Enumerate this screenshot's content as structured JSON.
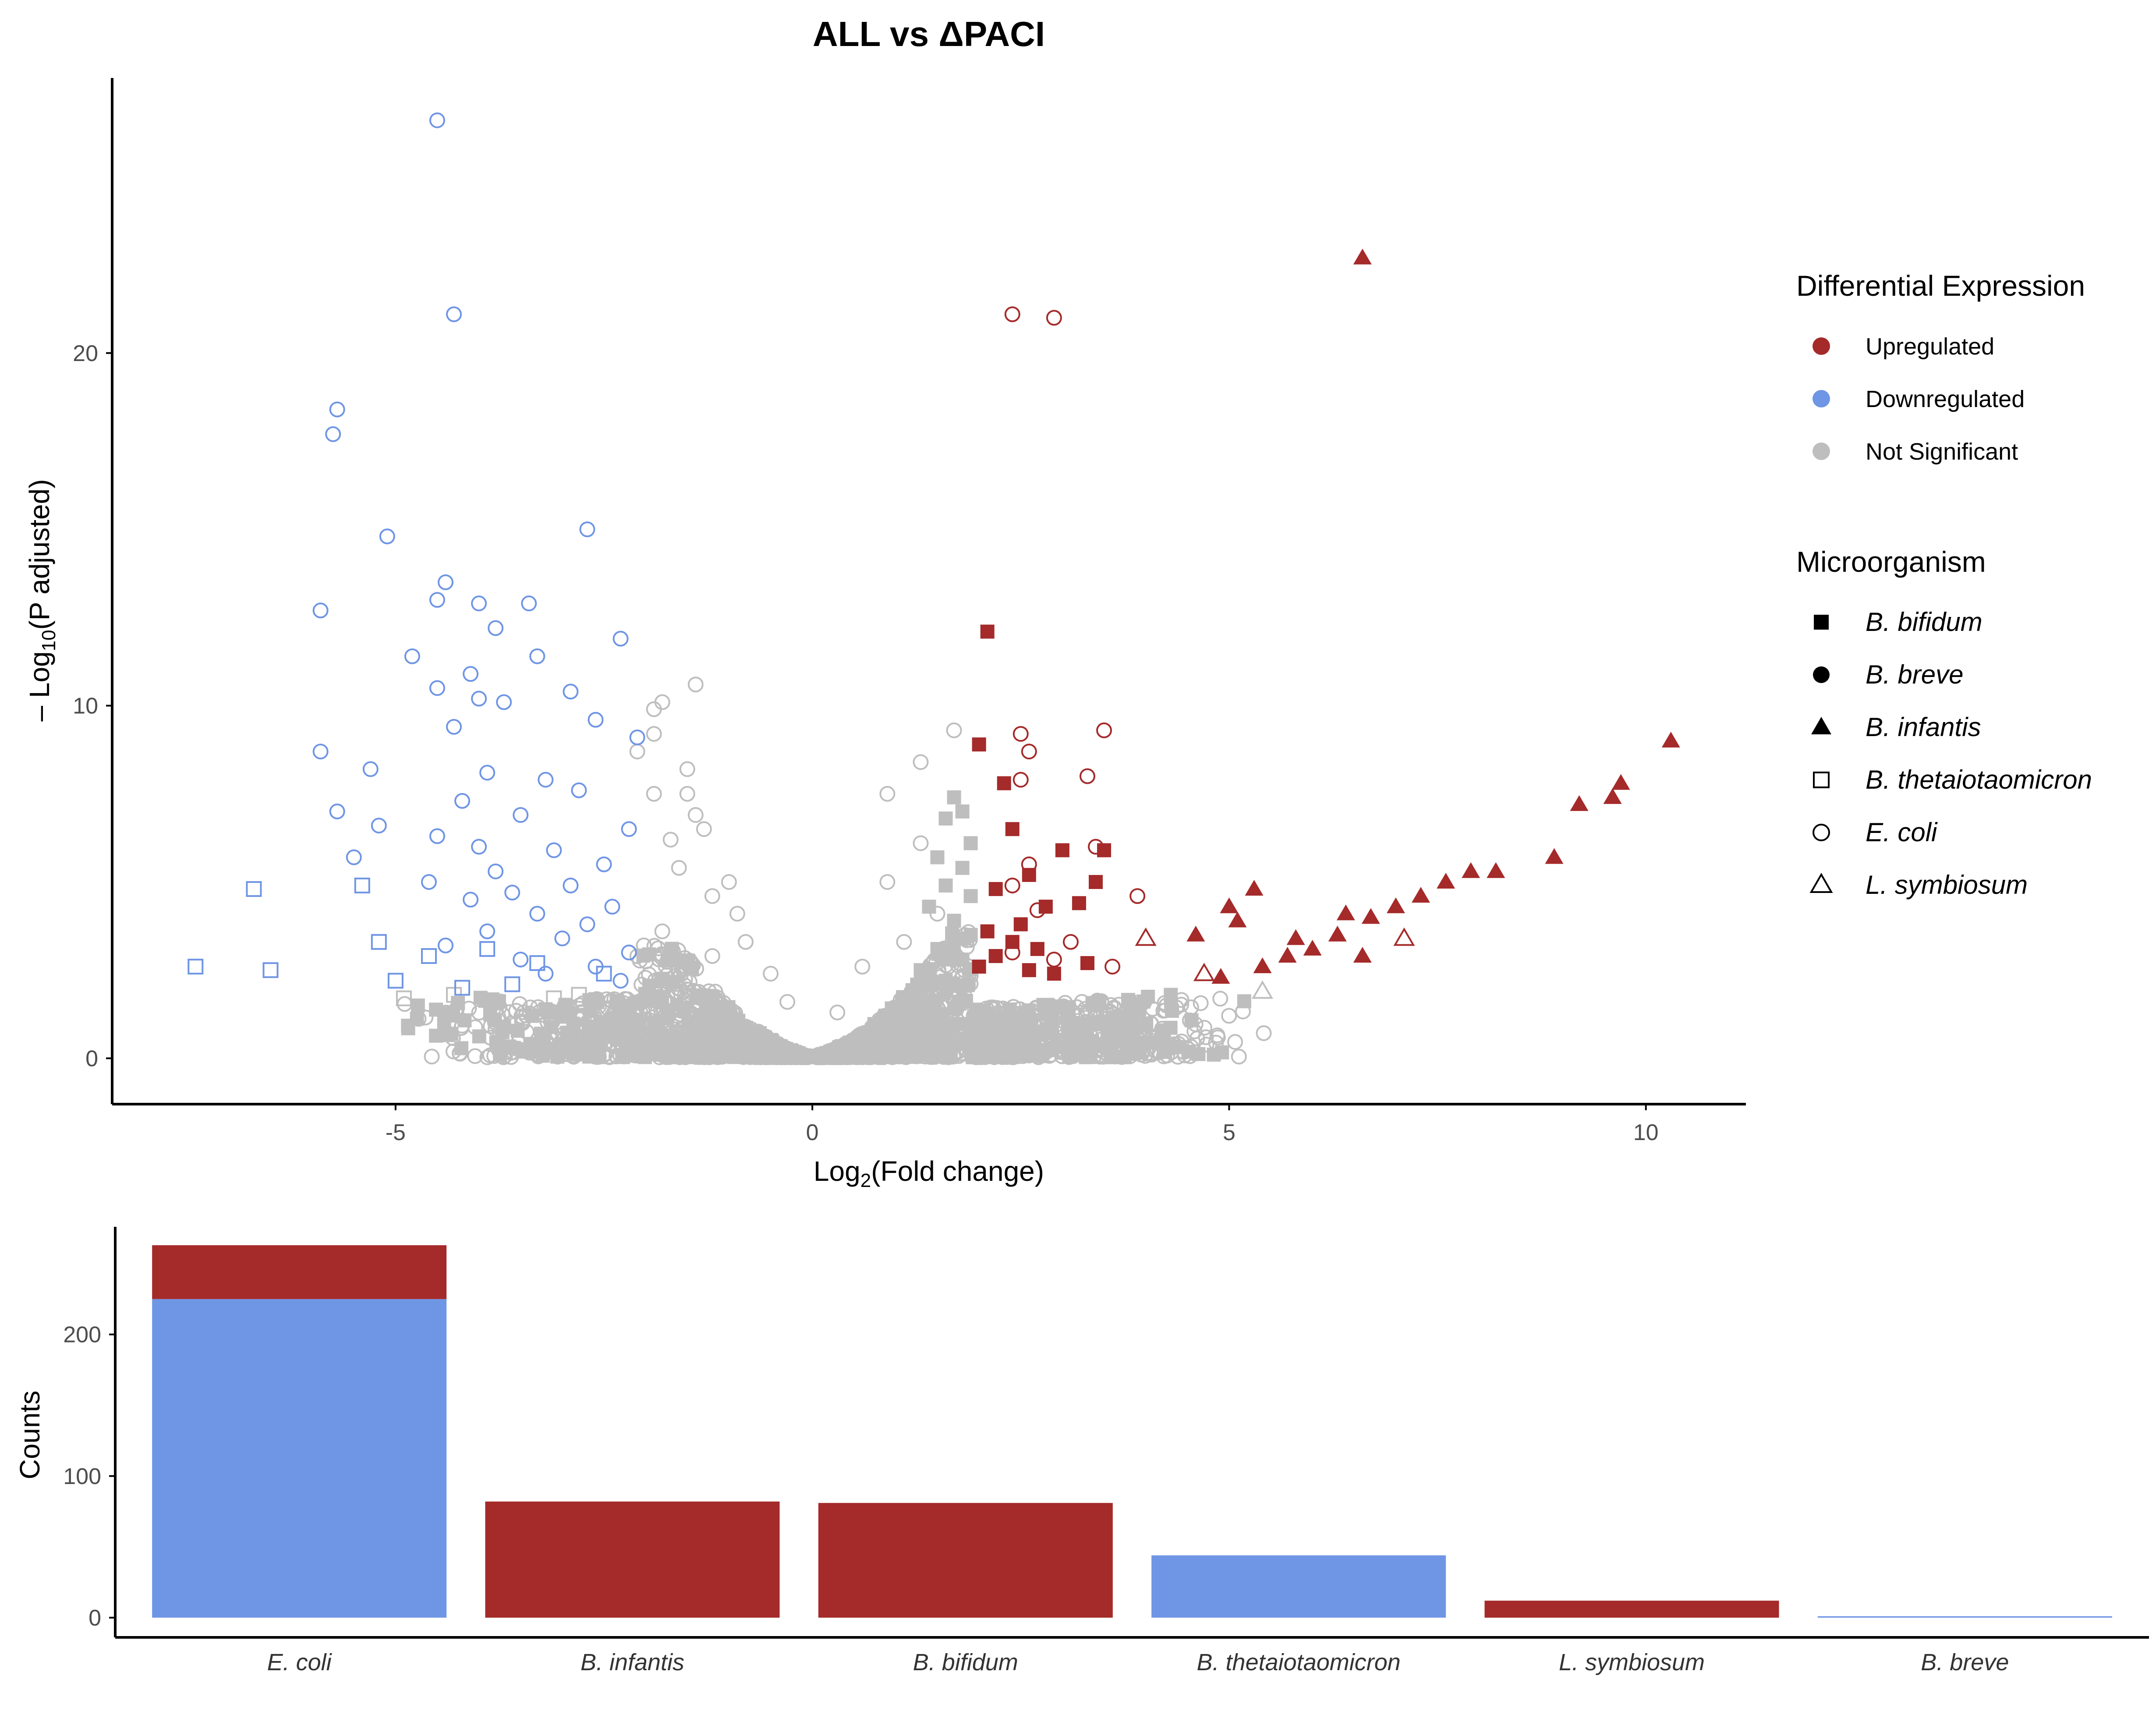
{
  "colors": {
    "up": "#A52A2A",
    "down": "#6F95E5",
    "ns": "#BEBEBE",
    "axis": "#000000"
  },
  "volcano": {
    "title": "ALL vs ΔPACI",
    "xlabel_main": "Log",
    "xlabel_sub": "2",
    "xlabel_rest": "(Fold change)",
    "ylabel_main": "– Log",
    "ylabel_sub": "10",
    "ylabel_rest": "(P adjusted)"
  },
  "legend": {
    "de_title": "Differential Expression",
    "de_items": [
      {
        "label": "Upregulated",
        "color": "#A52A2A"
      },
      {
        "label": "Downregulated",
        "color": "#6F95E5"
      },
      {
        "label": "Not Significant",
        "color": "#BEBEBE"
      }
    ],
    "org_title": "Microorganism",
    "org_items": [
      {
        "label": "B. bifidum",
        "shape": "square-filled"
      },
      {
        "label": "B. breve",
        "shape": "circle-filled"
      },
      {
        "label": "B. infantis",
        "shape": "triangle-filled"
      },
      {
        "label": "B. thetaiotaomicron",
        "shape": "square-open"
      },
      {
        "label": "E. coli",
        "shape": "circle-open"
      },
      {
        "label": "L. symbiosum",
        "shape": "triangle-open"
      }
    ]
  },
  "bars": {
    "ylabel": "Counts"
  },
  "chart_data": [
    {
      "type": "scatter",
      "title": "ALL vs ΔPACI",
      "xlabel": "Log2(Fold change)",
      "ylabel": "– Log10(P adjusted)",
      "xlim": [
        -8.4,
        11.2
      ],
      "ylim": [
        -1.3,
        27.8
      ],
      "xticks": [
        -5,
        0,
        5,
        10
      ],
      "yticks": [
        0,
        10,
        20
      ],
      "grid": false,
      "legend_position": "right",
      "shape_key": {
        "sqf": "B. bifidum",
        "cf": "B. breve",
        "tf": "B. infantis",
        "sqo": "B. thetaiotaomicron",
        "co": "E. coli",
        "to": "L. symbiosum"
      },
      "series": [
        {
          "name": "Downregulated",
          "color": "#6F95E5",
          "points": [
            [
              -4.5,
              26.6,
              "co"
            ],
            [
              -4.3,
              21.1,
              "co"
            ],
            [
              -5.7,
              18.4,
              "co"
            ],
            [
              -5.75,
              17.7,
              "co"
            ],
            [
              -2.7,
              15.0,
              "co"
            ],
            [
              -5.1,
              14.8,
              "co"
            ],
            [
              -4.4,
              13.5,
              "co"
            ],
            [
              -4.5,
              13.0,
              "co"
            ],
            [
              -4.0,
              12.9,
              "co"
            ],
            [
              -3.4,
              12.9,
              "co"
            ],
            [
              -5.9,
              12.7,
              "co"
            ],
            [
              -3.8,
              12.2,
              "co"
            ],
            [
              -2.3,
              11.9,
              "co"
            ],
            [
              -4.8,
              11.4,
              "co"
            ],
            [
              -3.3,
              11.4,
              "co"
            ],
            [
              -4.1,
              10.9,
              "co"
            ],
            [
              -4.5,
              10.5,
              "co"
            ],
            [
              -2.9,
              10.4,
              "co"
            ],
            [
              -4.0,
              10.2,
              "co"
            ],
            [
              -3.7,
              10.1,
              "co"
            ],
            [
              -2.6,
              9.6,
              "co"
            ],
            [
              -4.3,
              9.4,
              "co"
            ],
            [
              -2.1,
              9.1,
              "co"
            ],
            [
              -5.9,
              8.7,
              "co"
            ],
            [
              -5.3,
              8.2,
              "co"
            ],
            [
              -3.9,
              8.1,
              "co"
            ],
            [
              -3.2,
              7.9,
              "co"
            ],
            [
              -2.8,
              7.6,
              "co"
            ],
            [
              -4.2,
              7.3,
              "co"
            ],
            [
              -5.7,
              7.0,
              "co"
            ],
            [
              -3.5,
              6.9,
              "co"
            ],
            [
              -5.2,
              6.6,
              "co"
            ],
            [
              -2.2,
              6.5,
              "co"
            ],
            [
              -4.5,
              6.3,
              "co"
            ],
            [
              -4.0,
              6.0,
              "co"
            ],
            [
              -3.1,
              5.9,
              "co"
            ],
            [
              -5.5,
              5.7,
              "co"
            ],
            [
              -2.5,
              5.5,
              "co"
            ],
            [
              -3.8,
              5.3,
              "co"
            ],
            [
              -4.6,
              5.0,
              "co"
            ],
            [
              -2.9,
              4.9,
              "co"
            ],
            [
              -3.6,
              4.7,
              "co"
            ],
            [
              -4.1,
              4.5,
              "co"
            ],
            [
              -2.4,
              4.3,
              "co"
            ],
            [
              -3.3,
              4.1,
              "co"
            ],
            [
              -2.7,
              3.8,
              "co"
            ],
            [
              -3.9,
              3.6,
              "co"
            ],
            [
              -3.0,
              3.4,
              "co"
            ],
            [
              -4.4,
              3.2,
              "co"
            ],
            [
              -2.2,
              3.0,
              "co"
            ],
            [
              -3.5,
              2.8,
              "co"
            ],
            [
              -2.6,
              2.6,
              "co"
            ],
            [
              -3.2,
              2.4,
              "co"
            ],
            [
              -2.3,
              2.2,
              "co"
            ],
            [
              -6.7,
              4.8,
              "sqo"
            ],
            [
              -5.4,
              4.9,
              "sqo"
            ],
            [
              -7.4,
              2.6,
              "sqo"
            ],
            [
              -6.5,
              2.5,
              "sqo"
            ],
            [
              -5.2,
              3.3,
              "sqo"
            ],
            [
              -4.6,
              2.9,
              "sqo"
            ],
            [
              -3.9,
              3.1,
              "sqo"
            ],
            [
              -3.3,
              2.7,
              "sqo"
            ],
            [
              -5.0,
              2.2,
              "sqo"
            ],
            [
              -4.2,
              2.0,
              "sqo"
            ],
            [
              -3.6,
              2.1,
              "sqo"
            ],
            [
              -2.5,
              2.4,
              "sqo"
            ]
          ]
        },
        {
          "name": "Upregulated",
          "color": "#A52A2A",
          "points": [
            [
              6.6,
              22.7,
              "tf"
            ],
            [
              10.3,
              9.0,
              "tf"
            ],
            [
              9.7,
              7.8,
              "tf"
            ],
            [
              9.6,
              7.4,
              "tf"
            ],
            [
              9.2,
              7.2,
              "tf"
            ],
            [
              8.9,
              5.7,
              "tf"
            ],
            [
              8.2,
              5.3,
              "tf"
            ],
            [
              7.9,
              5.3,
              "tf"
            ],
            [
              7.6,
              5.0,
              "tf"
            ],
            [
              7.3,
              4.6,
              "tf"
            ],
            [
              7.0,
              4.3,
              "tf"
            ],
            [
              6.7,
              4.0,
              "tf"
            ],
            [
              6.3,
              3.5,
              "tf"
            ],
            [
              6.0,
              3.1,
              "tf"
            ],
            [
              5.7,
              2.9,
              "tf"
            ],
            [
              5.4,
              2.6,
              "tf"
            ],
            [
              5.3,
              4.8,
              "tf"
            ],
            [
              5.0,
              4.3,
              "tf"
            ],
            [
              4.6,
              3.5,
              "tf"
            ],
            [
              4.9,
              2.3,
              "tf"
            ],
            [
              6.6,
              2.9,
              "tf"
            ],
            [
              5.1,
              3.9,
              "tf"
            ],
            [
              6.4,
              4.1,
              "tf"
            ],
            [
              5.8,
              3.4,
              "tf"
            ],
            [
              2.1,
              12.1,
              "sqf"
            ],
            [
              2.0,
              8.9,
              "sqf"
            ],
            [
              2.3,
              7.8,
              "sqf"
            ],
            [
              2.4,
              6.5,
              "sqf"
            ],
            [
              3.0,
              5.9,
              "sqf"
            ],
            [
              3.5,
              5.9,
              "sqf"
            ],
            [
              2.6,
              5.2,
              "sqf"
            ],
            [
              3.4,
              5.0,
              "sqf"
            ],
            [
              2.2,
              4.8,
              "sqf"
            ],
            [
              2.8,
              4.3,
              "sqf"
            ],
            [
              3.2,
              4.4,
              "sqf"
            ],
            [
              2.5,
              3.8,
              "sqf"
            ],
            [
              2.1,
              3.6,
              "sqf"
            ],
            [
              2.4,
              3.3,
              "sqf"
            ],
            [
              2.7,
              3.1,
              "sqf"
            ],
            [
              2.2,
              2.9,
              "sqf"
            ],
            [
              3.3,
              2.7,
              "sqf"
            ],
            [
              2.6,
              2.5,
              "sqf"
            ],
            [
              2.0,
              2.6,
              "sqf"
            ],
            [
              2.9,
              2.4,
              "sqf"
            ],
            [
              2.4,
              21.1,
              "co"
            ],
            [
              2.9,
              21.0,
              "co"
            ],
            [
              3.5,
              9.3,
              "co"
            ],
            [
              2.5,
              9.2,
              "co"
            ],
            [
              2.6,
              8.7,
              "co"
            ],
            [
              2.5,
              7.9,
              "co"
            ],
            [
              3.3,
              8.0,
              "co"
            ],
            [
              3.4,
              6.0,
              "co"
            ],
            [
              2.6,
              5.5,
              "co"
            ],
            [
              2.4,
              4.9,
              "co"
            ],
            [
              3.9,
              4.6,
              "co"
            ],
            [
              2.7,
              4.2,
              "co"
            ],
            [
              3.1,
              3.3,
              "co"
            ],
            [
              2.4,
              3.0,
              "co"
            ],
            [
              2.9,
              2.8,
              "co"
            ],
            [
              3.6,
              2.6,
              "co"
            ],
            [
              4.0,
              3.4,
              "to"
            ],
            [
              7.1,
              3.4,
              "to"
            ],
            [
              4.7,
              2.4,
              "to"
            ]
          ]
        },
        {
          "name": "Not Significant",
          "color": "#BEBEBE",
          "points": [
            [
              -1.4,
              10.6,
              "co"
            ],
            [
              -1.8,
              10.1,
              "co"
            ],
            [
              -1.9,
              9.9,
              "co"
            ],
            [
              -1.9,
              9.2,
              "co"
            ],
            [
              -2.1,
              8.7,
              "co"
            ],
            [
              -1.5,
              8.2,
              "co"
            ],
            [
              -1.5,
              7.5,
              "co"
            ],
            [
              -1.9,
              7.5,
              "co"
            ],
            [
              -1.4,
              6.9,
              "co"
            ],
            [
              -1.3,
              6.5,
              "co"
            ],
            [
              -1.7,
              6.2,
              "co"
            ],
            [
              -1.0,
              5.0,
              "co"
            ],
            [
              -1.6,
              5.4,
              "co"
            ],
            [
              -0.9,
              4.1,
              "co"
            ],
            [
              -1.2,
              4.6,
              "co"
            ],
            [
              1.7,
              9.3,
              "co"
            ],
            [
              1.3,
              8.4,
              "co"
            ],
            [
              0.9,
              7.5,
              "co"
            ],
            [
              0.9,
              5.0,
              "co"
            ],
            [
              1.3,
              6.1,
              "co"
            ],
            [
              -0.8,
              3.3,
              "co"
            ],
            [
              -0.5,
              2.4,
              "co"
            ],
            [
              -0.3,
              1.6,
              "co"
            ],
            [
              0.3,
              1.3,
              "co"
            ],
            [
              0.6,
              2.6,
              "co"
            ],
            [
              1.1,
              3.3,
              "co"
            ],
            [
              1.5,
              4.1,
              "co"
            ],
            [
              -1.8,
              3.6,
              "co"
            ],
            [
              -1.2,
              2.9,
              "co"
            ],
            [
              1.7,
              7.4,
              "sqf"
            ],
            [
              1.8,
              7.0,
              "sqf"
            ],
            [
              1.6,
              6.8,
              "sqf"
            ],
            [
              1.9,
              6.1,
              "sqf"
            ],
            [
              1.5,
              5.7,
              "sqf"
            ],
            [
              1.8,
              5.4,
              "sqf"
            ],
            [
              1.6,
              4.9,
              "sqf"
            ],
            [
              1.9,
              4.6,
              "sqf"
            ],
            [
              1.4,
              4.3,
              "sqf"
            ],
            [
              1.7,
              3.9,
              "sqf"
            ],
            [
              1.9,
              3.5,
              "sqf"
            ],
            [
              1.5,
              3.1,
              "sqf"
            ],
            [
              1.8,
              2.8,
              "sqf"
            ],
            [
              1.3,
              2.5,
              "sqf"
            ],
            [
              1.6,
              2.2,
              "sqf"
            ],
            [
              -4.9,
              1.7,
              "sqo"
            ],
            [
              -4.3,
              1.8,
              "sqo"
            ],
            [
              -3.8,
              1.6,
              "sqo"
            ],
            [
              -3.1,
              1.7,
              "sqo"
            ],
            [
              -2.8,
              1.8,
              "sqo"
            ],
            [
              4.3,
              1.8,
              "sqf"
            ],
            [
              3.8,
              1.6,
              "sqf"
            ],
            [
              3.4,
              1.5,
              "sqf"
            ],
            [
              5.4,
              1.9,
              "to"
            ]
          ]
        }
      ]
    },
    {
      "type": "bar",
      "stacked": true,
      "ylabel": "Counts",
      "xlabel": "",
      "ylim": [
        0,
        270
      ],
      "yticks": [
        0,
        100,
        200
      ],
      "categories": [
        "E. coli",
        "B. infantis",
        "B. bifidum",
        "B. thetaiotaomicron",
        "L. symbiosum",
        "B. breve"
      ],
      "series": [
        {
          "name": "Downregulated",
          "color": "#6F95E5",
          "values": [
            225,
            0,
            0,
            44,
            0,
            1
          ]
        },
        {
          "name": "Upregulated",
          "color": "#A52A2A",
          "values": [
            38,
            82,
            81,
            0,
            12,
            0
          ]
        }
      ]
    }
  ]
}
